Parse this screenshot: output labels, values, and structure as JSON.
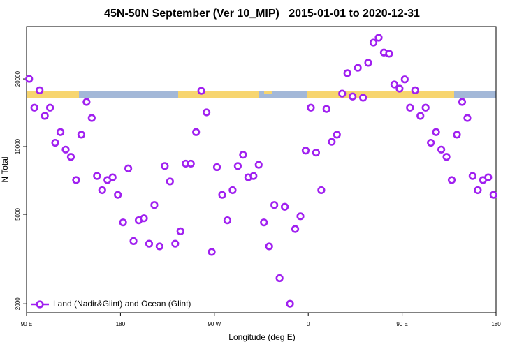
{
  "chart_data": {
    "type": "scatter",
    "title": "45N-50N September (Ver 10_MIP)   2015-01-01 to 2020-12-31",
    "xlabel": "Longitude (deg E)",
    "ylabel": "N Total",
    "xlim": [
      90,
      540
    ],
    "xticks": [
      {
        "value": 90,
        "label": "90 E"
      },
      180,
      {
        "value": 270,
        "label": "90 W"
      },
      {
        "value": 360,
        "label": "0"
      },
      {
        "value": 450,
        "label": "90 E"
      },
      {
        "value": 540,
        "label": "180"
      }
    ],
    "ylim": [
      1825,
      34200
    ],
    "yticks": [
      2000,
      5000,
      10000,
      20000
    ],
    "log_y": true,
    "x": [
      92.5,
      97.5,
      102.5,
      107.5,
      112.5,
      117.5,
      122.5,
      127.5,
      132.5,
      137.5,
      142.5,
      147.5,
      152.5,
      157.5,
      162.5,
      167.5,
      172.5,
      177.5,
      182.5,
      187.5,
      192.5,
      197.5,
      202.5,
      207.5,
      212.5,
      217.5,
      222.5,
      227.5,
      232.5,
      237.5,
      242.5,
      247.5,
      252.5,
      257.5,
      262.5,
      267.5,
      272.5,
      277.5,
      282.5,
      287.5,
      292.5,
      297.5,
      302.5,
      307.5,
      312.5,
      317.5,
      322.5,
      327.5,
      332.5,
      337.5,
      342.5,
      347.5,
      352.5,
      357.5,
      362.5,
      367.5,
      372.5,
      377.5,
      382.5,
      387.5,
      392.5,
      397.5,
      402.5,
      407.5,
      412.5,
      417.5,
      422.5,
      427.5,
      432.5,
      437.5,
      442.5,
      447.5,
      452.5,
      457.5,
      462.5,
      467.5,
      472.5,
      477.5,
      482.5,
      487.5,
      492.5,
      497.5,
      502.5,
      507.5,
      512.5,
      517.5,
      522.5,
      527.5,
      532.5,
      537.5
    ],
    "series": [
      {
        "name": "Land (Nadir&Glint) and Ocean (Glint)",
        "color": "#a020f0",
        "values": [
          20000,
          14900,
          17800,
          13700,
          14900,
          10400,
          11600,
          9700,
          9000,
          7100,
          11300,
          15800,
          13400,
          7400,
          6400,
          7100,
          7300,
          6100,
          4600,
          8000,
          3800,
          4700,
          4800,
          3700,
          5500,
          3600,
          8200,
          7000,
          3700,
          4200,
          8400,
          8400,
          11600,
          17700,
          14200,
          3400,
          8100,
          6100,
          4700,
          6400,
          8200,
          9200,
          7300,
          7400,
          8300,
          4600,
          3600,
          5500,
          2600,
          5400,
          2000,
          4300,
          4900,
          9600,
          14900,
          9400,
          6400,
          14700,
          10500,
          11300,
          17200,
          21200,
          16700,
          22400,
          16500,
          23600,
          29000,
          30500,
          26200,
          25900,
          18900,
          18100,
          19900,
          14900,
          17800,
          13700,
          14900,
          10400,
          11600,
          9700,
          9000,
          7100,
          11300,
          15800,
          13400,
          7400,
          6400,
          7100,
          7300,
          6100
        ]
      }
    ],
    "legend": "bottom-left"
  }
}
